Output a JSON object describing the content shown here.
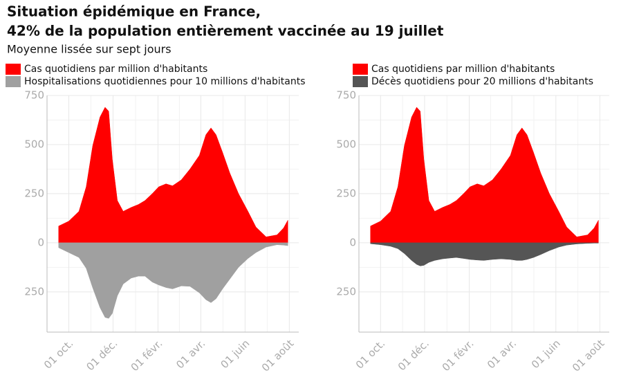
{
  "header": {
    "title": [
      "Situation épidémique en France,",
      "42% de la population entièrement vaccinée au 19 juillet"
    ],
    "subtitle": "Moyenne lissée sur sept jours"
  },
  "chart_data": [
    {
      "type": "area",
      "grid": true,
      "legend": "top-left",
      "x": [
        16,
        30,
        44,
        54,
        63,
        73,
        80,
        85,
        90,
        97,
        105,
        116,
        126,
        135,
        145,
        154,
        164,
        173,
        185,
        197,
        210,
        219,
        226,
        233,
        242,
        252,
        264,
        277,
        288,
        302,
        317,
        326,
        332
      ],
      "xlim": [
        0,
        347
      ],
      "xticks": [
        {
          "value": 30,
          "label": "01 oct."
        },
        {
          "value": 91,
          "label": "01 déc."
        },
        {
          "value": 153,
          "label": "01 févr."
        },
        {
          "value": 212,
          "label": "01 avr."
        },
        {
          "value": 273,
          "label": "01 juin"
        },
        {
          "value": 334,
          "label": "01 août"
        }
      ],
      "ylim": [
        -455,
        750
      ],
      "yticks": [
        {
          "value": -250,
          "label": "250"
        },
        0,
        250,
        500,
        750
      ],
      "series": [
        {
          "name": "Cas quotidiens par million d'habitants",
          "color": "#ff0000",
          "values": [
            85,
            110,
            160,
            285,
            495,
            640,
            690,
            670,
            425,
            215,
            160,
            180,
            195,
            215,
            250,
            285,
            300,
            290,
            320,
            375,
            445,
            550,
            585,
            550,
            460,
            355,
            250,
            160,
            80,
            30,
            40,
            75,
            115
          ]
        },
        {
          "name": "Hospitalisations quotidiennes pour 10 millions d'habitants",
          "color": "#a0a0a0",
          "values": [
            -25,
            -50,
            -75,
            -130,
            -230,
            -330,
            -380,
            -385,
            -360,
            -270,
            -210,
            -180,
            -170,
            -170,
            -200,
            -215,
            -228,
            -235,
            -220,
            -222,
            -255,
            -290,
            -305,
            -285,
            -235,
            -185,
            -125,
            -80,
            -50,
            -22,
            -10,
            -12,
            -15
          ]
        }
      ]
    },
    {
      "type": "area",
      "grid": true,
      "legend": "top-left",
      "x": [
        16,
        30,
        44,
        54,
        63,
        73,
        80,
        85,
        90,
        97,
        105,
        116,
        126,
        135,
        145,
        154,
        164,
        173,
        185,
        197,
        210,
        219,
        226,
        233,
        242,
        252,
        264,
        277,
        288,
        302,
        317,
        326,
        332
      ],
      "xlim": [
        0,
        347
      ],
      "xticks": [
        {
          "value": 30,
          "label": "01 oct."
        },
        {
          "value": 91,
          "label": "01 déc."
        },
        {
          "value": 153,
          "label": "01 févr."
        },
        {
          "value": 212,
          "label": "01 avr."
        },
        {
          "value": 273,
          "label": "01 juin"
        },
        {
          "value": 334,
          "label": "01 août"
        }
      ],
      "ylim": [
        -455,
        750
      ],
      "yticks": [
        {
          "value": -250,
          "label": "250"
        },
        0,
        250,
        500,
        750
      ],
      "series": [
        {
          "name": "Cas quotidiens par million d'habitants",
          "color": "#ff0000",
          "values": [
            85,
            110,
            160,
            285,
            495,
            640,
            690,
            670,
            425,
            215,
            160,
            180,
            195,
            215,
            250,
            285,
            300,
            290,
            320,
            375,
            445,
            550,
            585,
            550,
            460,
            355,
            250,
            160,
            80,
            30,
            40,
            75,
            115
          ]
        },
        {
          "name": "Décès quotidiens pour 20 millions d'habitants",
          "color": "#555555",
          "values": [
            -5,
            -10,
            -18,
            -30,
            -55,
            -90,
            -110,
            -118,
            -115,
            -100,
            -90,
            -82,
            -78,
            -75,
            -80,
            -85,
            -88,
            -90,
            -85,
            -82,
            -85,
            -90,
            -90,
            -85,
            -75,
            -60,
            -40,
            -22,
            -12,
            -6,
            -3,
            -2,
            -2
          ]
        }
      ]
    }
  ]
}
